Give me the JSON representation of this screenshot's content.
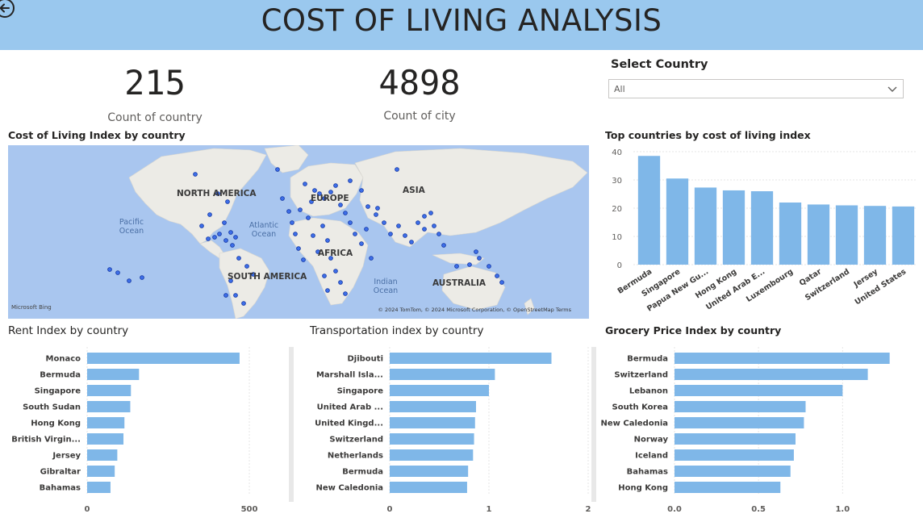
{
  "header": {
    "title": "COST OF LIVING ANALYSIS"
  },
  "kpis": {
    "country": {
      "value": "215",
      "label": "Count of country"
    },
    "city": {
      "value": "4898",
      "label": "Count of city"
    }
  },
  "slicer": {
    "title": "Select Country",
    "value": "All"
  },
  "map": {
    "title": "Cost of Living Index by country",
    "continents": [
      "NORTH AMERICA",
      "SOUTH AMERICA",
      "EUROPE",
      "AFRICA",
      "ASIA",
      "AUSTRALIA"
    ],
    "oceans": [
      "Pacific Ocean",
      "Atlantic Ocean",
      "Indian Ocean"
    ],
    "attribution": "© 2024 TomTom, © 2024 Microsoft Corporation, © OpenStreetMap  Terms",
    "bing_logo": "Microsoft Bing",
    "point_color": "#1f4fd1"
  },
  "colors": {
    "bar": "#7fb7e8",
    "header": "#9ac8ee"
  },
  "chart_data": [
    {
      "type": "bar",
      "title": "Top countries by cost of living index",
      "categories": [
        "Bermuda",
        "Singapore",
        "Papua New Gu...",
        "Hong Kong",
        "United Arab E...",
        "Luxembourg",
        "Qatar",
        "Switzerland",
        "Jersey",
        "United States"
      ],
      "values": [
        38.5,
        30.5,
        27.3,
        26.3,
        26.0,
        22.0,
        21.3,
        21.0,
        20.8,
        20.6
      ],
      "yticks": [
        "40",
        "30",
        "20",
        "10",
        "0"
      ],
      "ylim": [
        0,
        40
      ],
      "grid": true
    },
    {
      "type": "bar",
      "orientation": "horizontal",
      "title": "Rent Index by country",
      "categories": [
        "Monaco",
        "Bermuda",
        "Singapore",
        "South Sudan",
        "Hong Kong",
        "British Virgin...",
        "Jersey",
        "Gibraltar",
        "Bahamas"
      ],
      "values": [
        470,
        160,
        135,
        133,
        115,
        112,
        93,
        85,
        72
      ],
      "xticks": [
        "0",
        "500"
      ],
      "xlim": [
        0,
        500
      ]
    },
    {
      "type": "bar",
      "orientation": "horizontal",
      "title": "Transportation index by country",
      "categories": [
        "Djibouti",
        "Marshall Isla...",
        "Singapore",
        "United Arab ...",
        "United Kingd...",
        "Switzerland",
        "Netherlands",
        "Bermuda",
        "New Caledonia"
      ],
      "values": [
        1.63,
        1.06,
        1.0,
        0.87,
        0.86,
        0.85,
        0.84,
        0.79,
        0.78
      ],
      "xticks": [
        "0",
        "1",
        "2"
      ],
      "xlim": [
        0,
        2
      ]
    },
    {
      "type": "bar",
      "orientation": "horizontal",
      "title": "Grocery Price Index by country",
      "categories": [
        "Bermuda",
        "Switzerland",
        "Lebanon",
        "South Korea",
        "New Caledonia",
        "Norway",
        "Iceland",
        "Bahamas",
        "Hong Kong"
      ],
      "values": [
        1.28,
        1.15,
        1.0,
        0.78,
        0.77,
        0.72,
        0.71,
        0.69,
        0.63
      ],
      "xticks": [
        "0.0",
        "0.5",
        "1.0"
      ],
      "xlim": [
        0,
        1.44
      ]
    }
  ]
}
